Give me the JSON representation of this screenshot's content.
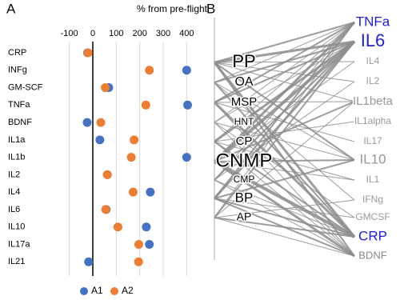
{
  "panel_labels": [
    "A",
    "B"
  ],
  "chart_data": {
    "type": "dot",
    "title": "% from pre-flight",
    "categories": [
      "CRP",
      "INFg",
      "GM-SCF",
      "TNFa",
      "BDNF",
      "IL1a",
      "IL1b",
      "IL2",
      "IL4",
      "IL6",
      "IL10",
      "IL17a",
      "IL21"
    ],
    "series": [
      {
        "name": "A1",
        "color": "#4472c4",
        "values": [
          -22,
          400,
          68,
          404,
          -24,
          30,
          400,
          62,
          245,
          57,
          228,
          241,
          -18
        ]
      },
      {
        "name": "A2",
        "color": "#ed7d31",
        "values": [
          -20,
          241,
          53,
          226,
          34,
          176,
          164,
          62,
          172,
          55,
          107,
          196,
          195
        ]
      }
    ],
    "xlim": [
      -150,
      450
    ],
    "xticks": [
      -100,
      0,
      100,
      200,
      300,
      400
    ],
    "grid": true,
    "legend": "bottom"
  },
  "network": {
    "left_nodes": [
      "PP",
      "OA",
      "MSP",
      "HNT",
      "CP",
      "CNMP",
      "CMP",
      "BP",
      "AP"
    ],
    "right_nodes": [
      "TNFa",
      "IL6",
      "IL4",
      "IL2",
      "IL1beta",
      "IL1alpha",
      "IL17",
      "IL10",
      "IL1",
      "IFNg",
      "GMCSF",
      "CRP",
      "BDNF"
    ]
  }
}
